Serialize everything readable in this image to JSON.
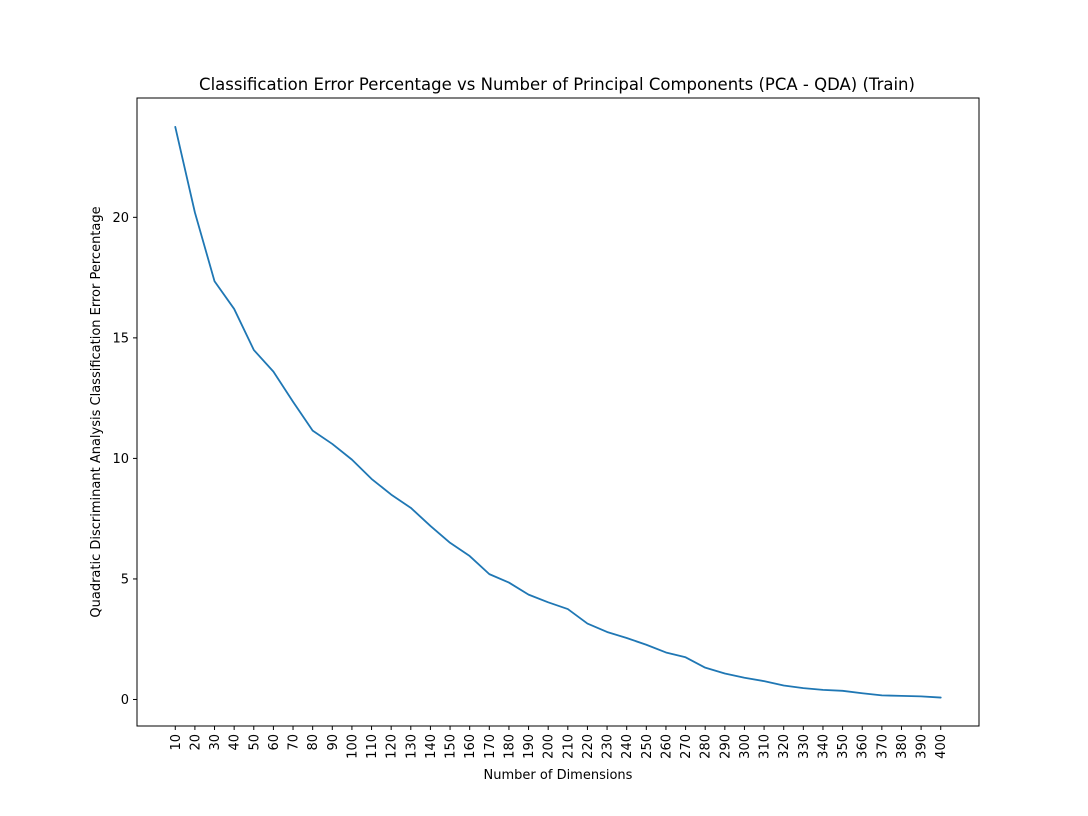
{
  "chart_data": {
    "type": "line",
    "title": "Classification Error Percentage vs Number of Principal Components (PCA - QDA) (Train)",
    "xlabel": "Number of Dimensions",
    "ylabel": "Quadratic Discriminant Analysis Classification Error Percentage",
    "x": [
      10,
      20,
      30,
      40,
      50,
      60,
      70,
      80,
      90,
      100,
      110,
      120,
      130,
      140,
      150,
      160,
      170,
      180,
      190,
      200,
      210,
      220,
      230,
      240,
      250,
      260,
      270,
      280,
      290,
      300,
      310,
      320,
      330,
      340,
      350,
      360,
      370,
      380,
      390,
      400
    ],
    "series": [
      {
        "name": "",
        "color": "#1f77b4",
        "values": [
          23.75,
          20.2,
          17.35,
          16.2,
          14.5,
          13.6,
          12.35,
          11.15,
          10.6,
          9.95,
          9.15,
          8.5,
          7.95,
          7.2,
          6.5,
          5.95,
          5.2,
          4.85,
          4.35,
          4.03,
          3.75,
          3.15,
          2.8,
          2.55,
          2.27,
          1.95,
          1.75,
          1.32,
          1.08,
          0.9,
          0.76,
          0.58,
          0.47,
          0.4,
          0.36,
          0.26,
          0.17,
          0.15,
          0.13,
          0.08
        ]
      }
    ],
    "xticks": [
      10,
      20,
      30,
      40,
      50,
      60,
      70,
      80,
      90,
      100,
      110,
      120,
      130,
      140,
      150,
      160,
      170,
      180,
      190,
      200,
      210,
      220,
      230,
      240,
      250,
      260,
      270,
      280,
      290,
      300,
      310,
      320,
      330,
      340,
      350,
      360,
      370,
      380,
      390,
      400
    ],
    "yticks": [
      0,
      5,
      10,
      15,
      20
    ],
    "xlim": [
      -9.5,
      419.5
    ],
    "ylim": [
      -1.1,
      24.95
    ],
    "grid": false,
    "legend": "none"
  }
}
